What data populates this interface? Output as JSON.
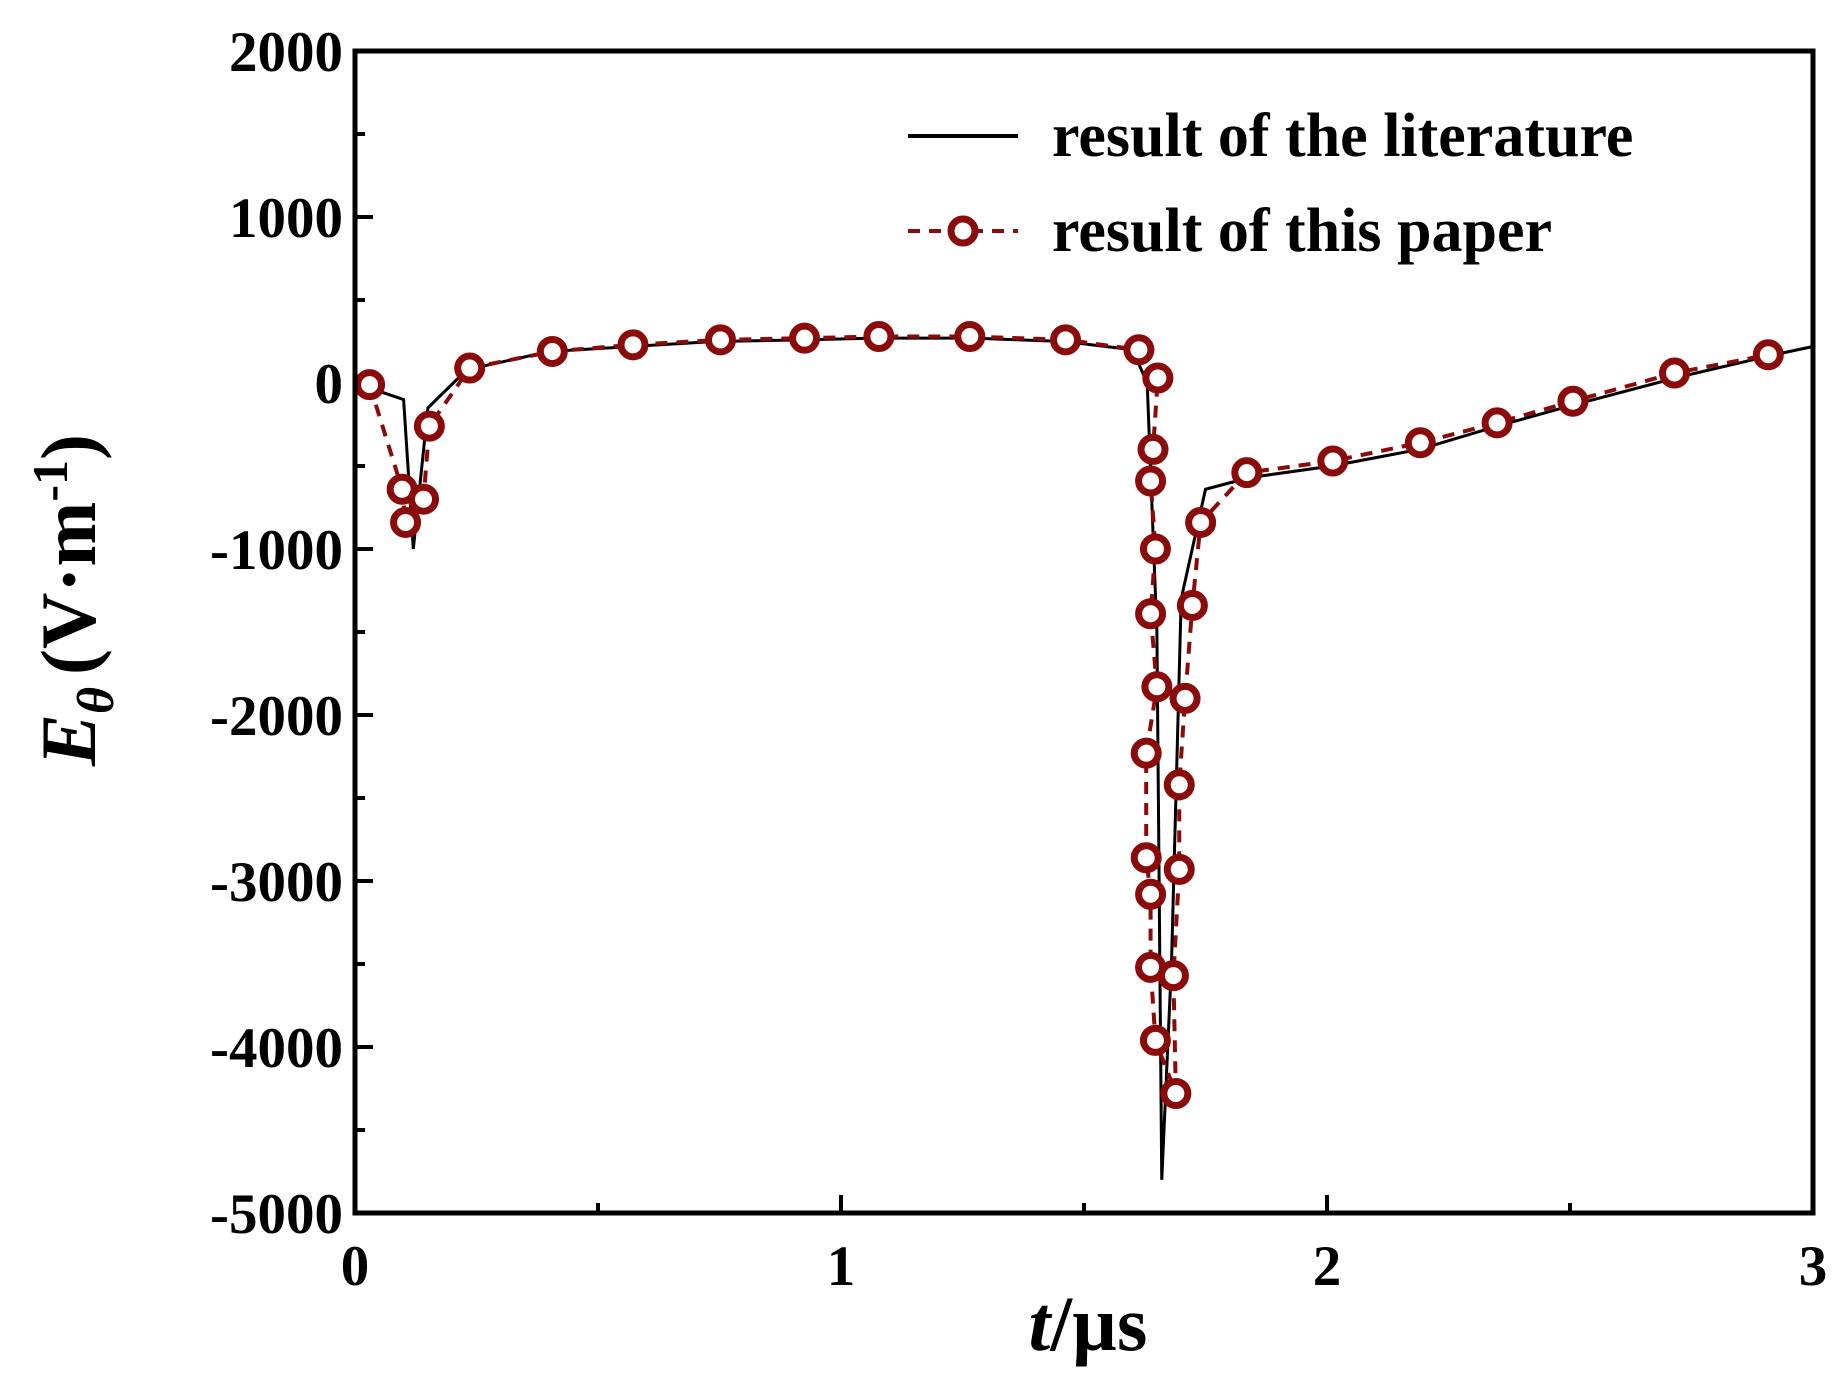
{
  "chart_data": {
    "type": "line",
    "xlabel": {
      "symbol": "t",
      "unit": "/µs"
    },
    "ylabel": {
      "symbol": "E",
      "subscript": "θ",
      "unit": "(V·m",
      "exponent": "-1",
      "close": ")"
    },
    "xlim": [
      0,
      3
    ],
    "xticks": [
      0,
      1,
      2,
      3
    ],
    "xticks_minor": [
      0.5,
      1.5,
      2.5
    ],
    "ylim": [
      -5000,
      2000
    ],
    "yticks": [
      -5000,
      -4000,
      -3000,
      -2000,
      -1000,
      0,
      1000,
      2000
    ],
    "yticks_minor": [
      -4500,
      -3500,
      -2500,
      -1500,
      -500,
      500,
      1500
    ],
    "legend": "upper right",
    "series": [
      {
        "name": "result of the literature",
        "color": "#000000",
        "style": "solid",
        "markers": false,
        "x": [
          0.02,
          0.1,
          0.12,
          0.15,
          0.23,
          0.4,
          0.57,
          0.74,
          0.92,
          1.07,
          1.27,
          1.46,
          1.6,
          1.63,
          1.65,
          1.66,
          1.68,
          1.7,
          1.75,
          1.84,
          2.01,
          2.19,
          2.35,
          2.51,
          2.73,
          2.92,
          3.0
        ],
        "values": [
          -20,
          -100,
          -1000,
          -150,
          80,
          190,
          220,
          250,
          260,
          270,
          270,
          250,
          200,
          0,
          -1500,
          -4800,
          -3500,
          -1300,
          -640,
          -570,
          -500,
          -400,
          -260,
          -130,
          40,
          170,
          220
        ]
      },
      {
        "name": "result of this paper",
        "color": "#8b0a0a",
        "style": "dashed",
        "markers": true,
        "x": [
          0.03,
          0.097,
          0.104,
          0.141,
          0.153,
          0.236,
          0.406,
          0.572,
          0.752,
          0.925,
          1.078,
          1.265,
          1.462,
          1.613,
          1.652,
          1.642,
          1.637,
          1.647,
          1.637,
          1.65,
          1.628,
          1.628,
          1.637,
          1.637,
          1.647,
          1.689,
          1.684,
          1.696,
          1.696,
          1.708,
          1.723,
          1.74,
          1.835,
          2.012,
          2.192,
          2.35,
          2.506,
          2.715,
          2.908
        ],
        "values": [
          -10,
          -640,
          -840,
          -700,
          -260,
          90,
          190,
          230,
          260,
          270,
          280,
          280,
          260,
          200,
          30,
          -400,
          -590,
          -1000,
          -1390,
          -1830,
          -2230,
          -2860,
          -3080,
          -3520,
          -3960,
          -4280,
          -3570,
          -2930,
          -2420,
          -1900,
          -1340,
          -840,
          -540,
          -470,
          -360,
          -240,
          -110,
          60,
          170
        ]
      }
    ]
  }
}
